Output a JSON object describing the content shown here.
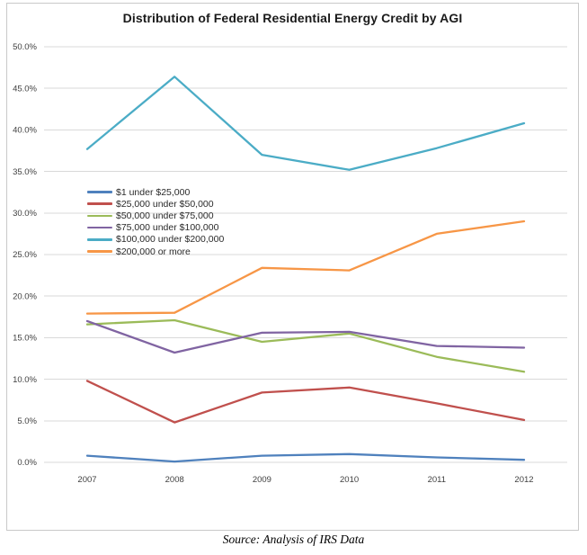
{
  "page": {
    "background": "#ffffff",
    "frame_border_color": "#c9c9c9",
    "gridline_color": "#d9d9d9"
  },
  "chart_data": {
    "type": "line",
    "title": "Distribution of Federal Residential Energy Credit by AGI",
    "xlabel": "",
    "ylabel": "",
    "x_labels": [
      "2007",
      "2008",
      "2009",
      "2010",
      "2011",
      "2012"
    ],
    "y_axis": {
      "min": 0,
      "max": 50,
      "step": 5,
      "tick_labels": [
        "50.0%",
        "45.0%",
        "40.0%",
        "35.0%",
        "30.0%",
        "25.0%",
        "20.0%",
        "15.0%",
        "10.0%",
        "5.0%",
        "0.0%"
      ]
    },
    "grid": true,
    "legend_position": "upper-left-inside",
    "series": [
      {
        "name": "$1 under $25,000",
        "color": "#4F81BD",
        "values": [
          0.8,
          0.1,
          0.8,
          1.0,
          0.6,
          0.3
        ]
      },
      {
        "name": "$25,000 under $50,000",
        "color": "#C0504D",
        "values": [
          9.8,
          4.8,
          8.4,
          9.0,
          7.1,
          5.1
        ]
      },
      {
        "name": "$50,000 under $75,000",
        "color": "#9BBB59",
        "values": [
          16.6,
          17.1,
          14.5,
          15.5,
          12.7,
          10.9
        ]
      },
      {
        "name": "$75,000 under $100,000",
        "color": "#8064A2",
        "values": [
          17.0,
          13.2,
          15.6,
          15.7,
          14.0,
          13.8
        ]
      },
      {
        "name": "$100,000 under $200,000",
        "color": "#4BACC6",
        "values": [
          37.7,
          46.4,
          37.0,
          35.2,
          37.8,
          40.8
        ]
      },
      {
        "name": "$200,000 or more",
        "color": "#F79646",
        "values": [
          17.9,
          18.0,
          23.4,
          23.1,
          27.5,
          29.0
        ]
      }
    ]
  },
  "footer": {
    "source_text": "Source:  Analysis of IRS Data"
  }
}
